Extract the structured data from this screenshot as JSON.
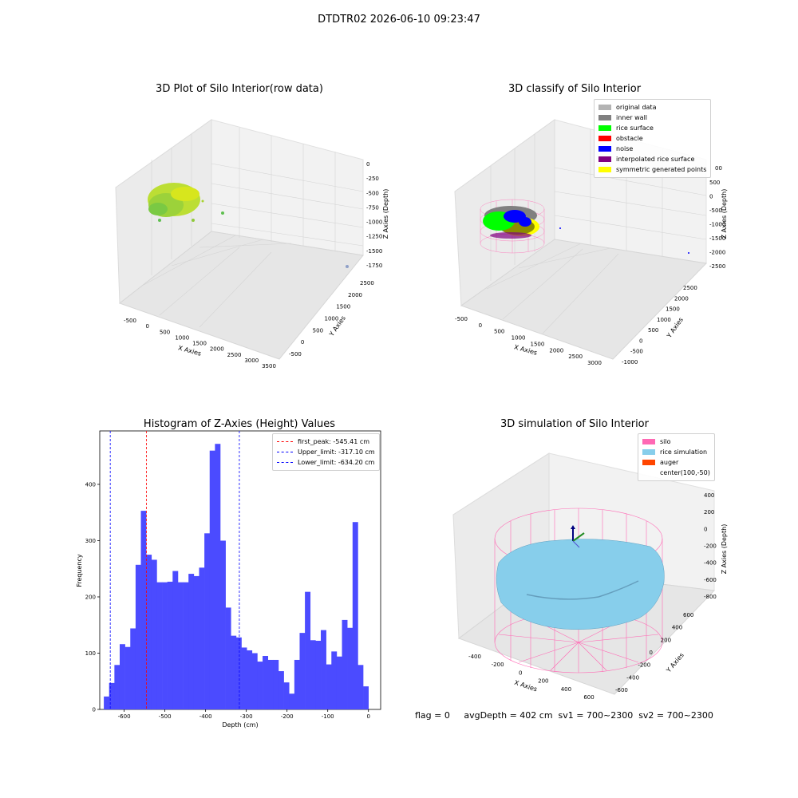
{
  "figure": {
    "suptitle": "DTDTR02 2026-06-10 09:23:47",
    "footer": "flag = 0     avgDepth = 402 cm  sv1 = 700~2300  sv2 = 700~2300"
  },
  "chart_data": [
    {
      "type": "scatter3d",
      "title": "3D Plot of Silo Interior(row data)",
      "xlabel": "X Axies",
      "ylabel": "Y Axies",
      "zlabel": "Z Axies (Depth)",
      "xticks": [
        "-500",
        "0",
        "500",
        "1000",
        "1500",
        "2000",
        "2500",
        "3000",
        "3500"
      ],
      "yticks": [
        "-500",
        "0",
        "500",
        "1000",
        "1500",
        "2000",
        "2500"
      ],
      "zticks": [
        "0",
        "-250",
        "-500",
        "-750",
        "-1000",
        "-1250",
        "-1500",
        "-1750"
      ],
      "colors": {
        "surface": "#b5dc28",
        "surface_dark": "#7ac943",
        "outlier": "#8fa0c8"
      }
    },
    {
      "type": "scatter3d",
      "title": "3D classify of Silo Interior",
      "xlabel": "X Axies",
      "ylabel": "Y Axies",
      "zlabel": "Z Axies (Depth)",
      "xticks": [
        "-500",
        "0",
        "500",
        "1000",
        "1500",
        "2000",
        "2500",
        "3000"
      ],
      "yticks": [
        "-1000",
        "-500",
        "0",
        "500",
        "1000",
        "1500",
        "2000",
        "2500"
      ],
      "zticks": [
        "500",
        "0",
        "-500",
        "-1000",
        "-1500",
        "-2000",
        "-2500"
      ],
      "zticks_hidden_partial": "00",
      "legend": [
        {
          "label": "original data",
          "color": "#b3b3b3"
        },
        {
          "label": "inner wall",
          "color": "#808080"
        },
        {
          "label": "rice surface",
          "color": "#00ff00"
        },
        {
          "label": "obstacle",
          "color": "#ff0000"
        },
        {
          "label": "noise",
          "color": "#0000ff"
        },
        {
          "label": "interpolated rice surface",
          "color": "#800080"
        },
        {
          "label": "symmetric generated points",
          "color": "#ffff00"
        }
      ]
    },
    {
      "type": "bar",
      "title": "Histogram of Z-Axies (Height) Values",
      "xlabel": "Depth (cm)",
      "ylabel": "Frequency",
      "xlim": [
        -660,
        30
      ],
      "ylim": [
        0,
        495
      ],
      "xticks": [
        -600,
        -500,
        -400,
        -300,
        -200,
        -100,
        0
      ],
      "yticks": [
        0,
        100,
        200,
        300,
        400
      ],
      "bar_color": "#4b4bff",
      "bin_start": -650,
      "bin_width": 13,
      "values": [
        23,
        47,
        79,
        116,
        111,
        144,
        257,
        353,
        275,
        266,
        226,
        226,
        227,
        246,
        226,
        226,
        241,
        237,
        252,
        313,
        460,
        472,
        300,
        181,
        131,
        128,
        110,
        105,
        100,
        85,
        95,
        88,
        88,
        68,
        48,
        28,
        88,
        136,
        209,
        123,
        122,
        141,
        80,
        103,
        94,
        159,
        145,
        333,
        79,
        41
      ],
      "lines": [
        {
          "label": "first_peak: -545.41 cm",
          "x": -545.41,
          "color": "#ff0000"
        },
        {
          "label": "Upper_limit: -317.10 cm",
          "x": -317.1,
          "color": "#0000ff"
        },
        {
          "label": "Lower_limit: -634.20 cm",
          "x": -634.2,
          "color": "#0000ff"
        }
      ]
    },
    {
      "type": "surface3d",
      "title": "3D simulation of Silo Interior",
      "xlabel": "X Axies",
      "ylabel": "Y Axies",
      "zlabel": "Z Axies (Depth)",
      "xticks": [
        "-400",
        "-200",
        "0",
        "200",
        "400",
        "600"
      ],
      "yticks": [
        "-600",
        "-400",
        "-200",
        "0",
        "200",
        "400",
        "600"
      ],
      "zticks": [
        "400",
        "200",
        "0",
        "-200",
        "-400",
        "-600",
        "-800"
      ],
      "legend": [
        {
          "label": "silo",
          "color": "#ff69b4"
        },
        {
          "label": "rice simulation",
          "color": "#87ceeb"
        },
        {
          "label": "auger",
          "color": "#ff4500"
        },
        {
          "label": "center(100,-50)",
          "color": ""
        }
      ]
    }
  ]
}
